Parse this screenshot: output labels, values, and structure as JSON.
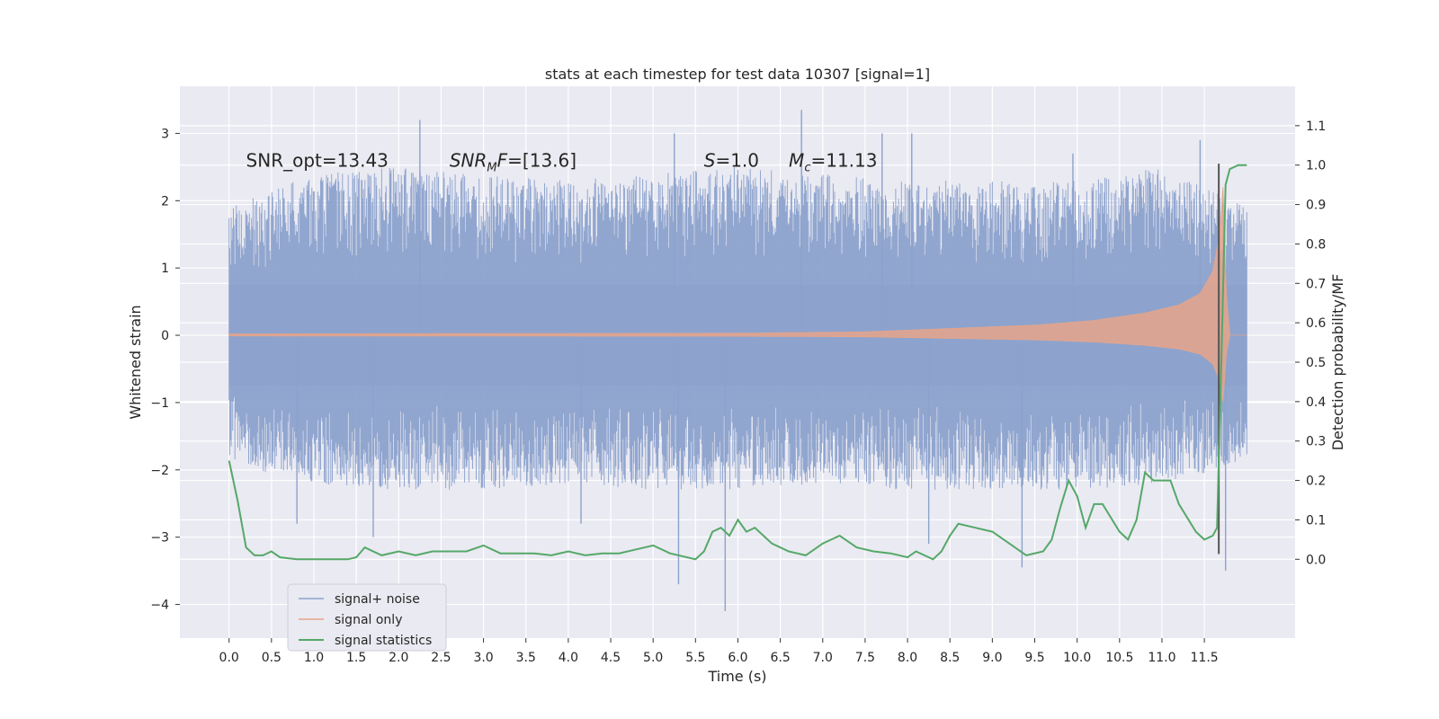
{
  "chart_data": {
    "type": "line",
    "title": "stats at each timestep for test data 10307 [signal=1]",
    "xlabel": "Time (s)",
    "ylabel": "Whitened strain",
    "y2label": "Detection probability/MF",
    "xlim": [
      -0.58,
      12.57
    ],
    "ylim": [
      -4.5,
      3.7
    ],
    "y2lim": [
      -0.2,
      1.2
    ],
    "x_ticks": [
      "0.0",
      "0.5",
      "1.0",
      "1.5",
      "2.0",
      "2.5",
      "3.0",
      "3.5",
      "4.0",
      "4.5",
      "5.0",
      "5.5",
      "6.0",
      "6.5",
      "7.0",
      "7.5",
      "8.0",
      "8.5",
      "9.0",
      "9.5",
      "10.0",
      "10.5",
      "11.0",
      "11.5"
    ],
    "y_ticks": [
      "3",
      "2",
      "1",
      "0",
      "−1",
      "−2",
      "−3",
      "−4"
    ],
    "y2_ticks": [
      "1.1",
      "1.0",
      "0.9",
      "0.8",
      "0.7",
      "0.6",
      "0.5",
      "0.4",
      "0.3",
      "0.2",
      "0.1",
      "0.0"
    ],
    "grid": true,
    "legend_position": "bottom-left",
    "annotations": [
      {
        "id": "snr-opt",
        "text": "SNR_opt=13.43",
        "x": 0.2,
        "y": 2.6
      },
      {
        "id": "snr-mf",
        "text": "SNR_M F=[13.6]",
        "x": 2.6,
        "y": 2.6
      },
      {
        "id": "s",
        "text": "S=1.0",
        "x": 5.6,
        "y": 2.6
      },
      {
        "id": "mc",
        "text": "M_c=11.13",
        "x": 6.6,
        "y": 2.6
      }
    ],
    "series": [
      {
        "name": "signal+ noise",
        "kind": "noise-band",
        "color": "#8ca2cc",
        "x_range": [
          0.0,
          12.0
        ],
        "core_amplitude": 0.75,
        "upper_envelope": [
          [
            0.0,
            1.9
          ],
          [
            1.0,
            2.4
          ],
          [
            2.0,
            2.5
          ],
          [
            3.0,
            2.4
          ],
          [
            4.0,
            2.3
          ],
          [
            5.0,
            2.4
          ],
          [
            6.0,
            2.5
          ],
          [
            7.0,
            2.4
          ],
          [
            8.0,
            2.3
          ],
          [
            9.0,
            2.3
          ],
          [
            10.0,
            2.3
          ],
          [
            11.0,
            2.5
          ],
          [
            12.0,
            1.9
          ]
        ],
        "lower_envelope": [
          [
            0.0,
            -1.9
          ],
          [
            1.0,
            -2.2
          ],
          [
            2.0,
            -2.3
          ],
          [
            3.0,
            -2.3
          ],
          [
            4.0,
            -2.2
          ],
          [
            5.0,
            -2.3
          ],
          [
            6.0,
            -2.3
          ],
          [
            7.0,
            -2.2
          ],
          [
            8.0,
            -2.3
          ],
          [
            9.0,
            -2.3
          ],
          [
            10.0,
            -2.3
          ],
          [
            11.0,
            -2.2
          ],
          [
            12.0,
            -1.9
          ]
        ],
        "spikes": [
          [
            2.25,
            3.2
          ],
          [
            5.25,
            3.0
          ],
          [
            6.75,
            3.35
          ],
          [
            7.7,
            3.0
          ],
          [
            8.05,
            3.0
          ],
          [
            11.45,
            2.9
          ],
          [
            9.95,
            2.7
          ],
          [
            1.7,
            -3.0
          ],
          [
            5.3,
            -3.7
          ],
          [
            5.85,
            -4.1
          ],
          [
            9.35,
            -3.45
          ],
          [
            11.75,
            -3.5
          ],
          [
            0.8,
            -2.8
          ],
          [
            4.15,
            -2.8
          ],
          [
            8.25,
            -3.1
          ]
        ]
      },
      {
        "name": "signal only",
        "kind": "chirp",
        "color": "#e6a48a",
        "envelope": [
          [
            0.0,
            0.02
          ],
          [
            6.0,
            0.03
          ],
          [
            7.5,
            0.05
          ],
          [
            8.5,
            0.1
          ],
          [
            9.5,
            0.15
          ],
          [
            10.2,
            0.22
          ],
          [
            10.8,
            0.33
          ],
          [
            11.2,
            0.45
          ],
          [
            11.45,
            0.62
          ],
          [
            11.6,
            0.95
          ],
          [
            11.68,
            1.5
          ],
          [
            11.72,
            2.2
          ],
          [
            11.76,
            0.6
          ],
          [
            11.8,
            0.0
          ],
          [
            12.0,
            0.0
          ]
        ]
      },
      {
        "name": "signal statistics",
        "kind": "probability",
        "axis": "right",
        "color": "#55a868",
        "points": [
          [
            0.0,
            0.25
          ],
          [
            0.1,
            0.15
          ],
          [
            0.2,
            0.03
          ],
          [
            0.3,
            0.01
          ],
          [
            0.4,
            0.01
          ],
          [
            0.5,
            0.02
          ],
          [
            0.6,
            0.005
          ],
          [
            0.8,
            0.0
          ],
          [
            1.0,
            0.0
          ],
          [
            1.2,
            0.0
          ],
          [
            1.4,
            0.0
          ],
          [
            1.5,
            0.005
          ],
          [
            1.6,
            0.03
          ],
          [
            1.8,
            0.01
          ],
          [
            2.0,
            0.02
          ],
          [
            2.2,
            0.01
          ],
          [
            2.4,
            0.02
          ],
          [
            2.6,
            0.02
          ],
          [
            2.8,
            0.02
          ],
          [
            3.0,
            0.035
          ],
          [
            3.2,
            0.015
          ],
          [
            3.4,
            0.015
          ],
          [
            3.6,
            0.015
          ],
          [
            3.8,
            0.01
          ],
          [
            4.0,
            0.02
          ],
          [
            4.2,
            0.01
          ],
          [
            4.4,
            0.015
          ],
          [
            4.6,
            0.015
          ],
          [
            4.8,
            0.025
          ],
          [
            5.0,
            0.035
          ],
          [
            5.2,
            0.015
          ],
          [
            5.4,
            0.005
          ],
          [
            5.5,
            0.0
          ],
          [
            5.6,
            0.02
          ],
          [
            5.7,
            0.07
          ],
          [
            5.8,
            0.08
          ],
          [
            5.9,
            0.06
          ],
          [
            6.0,
            0.1
          ],
          [
            6.1,
            0.07
          ],
          [
            6.2,
            0.08
          ],
          [
            6.3,
            0.06
          ],
          [
            6.4,
            0.04
          ],
          [
            6.6,
            0.02
          ],
          [
            6.8,
            0.01
          ],
          [
            7.0,
            0.04
          ],
          [
            7.2,
            0.06
          ],
          [
            7.4,
            0.03
          ],
          [
            7.6,
            0.02
          ],
          [
            7.8,
            0.015
          ],
          [
            8.0,
            0.005
          ],
          [
            8.1,
            0.02
          ],
          [
            8.2,
            0.01
          ],
          [
            8.3,
            0.0
          ],
          [
            8.4,
            0.02
          ],
          [
            8.5,
            0.06
          ],
          [
            8.6,
            0.09
          ],
          [
            8.8,
            0.08
          ],
          [
            9.0,
            0.07
          ],
          [
            9.2,
            0.04
          ],
          [
            9.4,
            0.01
          ],
          [
            9.6,
            0.02
          ],
          [
            9.7,
            0.05
          ],
          [
            9.8,
            0.13
          ],
          [
            9.9,
            0.2
          ],
          [
            10.0,
            0.16
          ],
          [
            10.1,
            0.08
          ],
          [
            10.2,
            0.14
          ],
          [
            10.3,
            0.14
          ],
          [
            10.5,
            0.07
          ],
          [
            10.6,
            0.05
          ],
          [
            10.7,
            0.1
          ],
          [
            10.8,
            0.22
          ],
          [
            10.9,
            0.2
          ],
          [
            11.0,
            0.2
          ],
          [
            11.1,
            0.2
          ],
          [
            11.2,
            0.14
          ],
          [
            11.4,
            0.07
          ],
          [
            11.5,
            0.05
          ],
          [
            11.6,
            0.06
          ],
          [
            11.65,
            0.08
          ],
          [
            11.7,
            0.5
          ],
          [
            11.75,
            0.95
          ],
          [
            11.8,
            0.99
          ],
          [
            11.9,
            1.0
          ],
          [
            12.0,
            1.0
          ]
        ]
      }
    ],
    "marker": {
      "x": 11.67,
      "y_range": [
        -3.25,
        2.55
      ],
      "color": "#555555"
    }
  }
}
